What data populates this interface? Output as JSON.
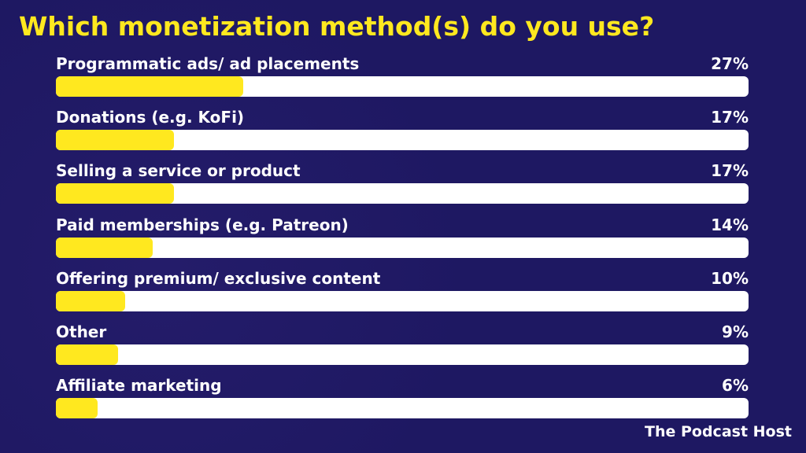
{
  "chart_data": {
    "type": "bar",
    "orientation": "horizontal",
    "title": "Which monetization method(s) do you use?",
    "categories": [
      "Programmatic ads/ ad placements",
      "Donations (e.g. KoFi)",
      "Selling a service or product",
      "Paid memberships (e.g. Patreon)",
      "Offering premium/ exclusive content",
      "Other",
      "Affiliate marketing"
    ],
    "values": [
      27,
      17,
      17,
      14,
      10,
      9,
      6
    ],
    "value_labels": [
      "27%",
      "17%",
      "17%",
      "14%",
      "10%",
      "9%",
      "6%"
    ],
    "xlim": [
      0,
      100
    ],
    "grid": false,
    "colors": {
      "bar": "#ffe81f",
      "track": "#ffffff",
      "background": "#1e1862",
      "title": "#ffe81f"
    }
  },
  "brand": {
    "logo_text": "The Podcast Host"
  }
}
